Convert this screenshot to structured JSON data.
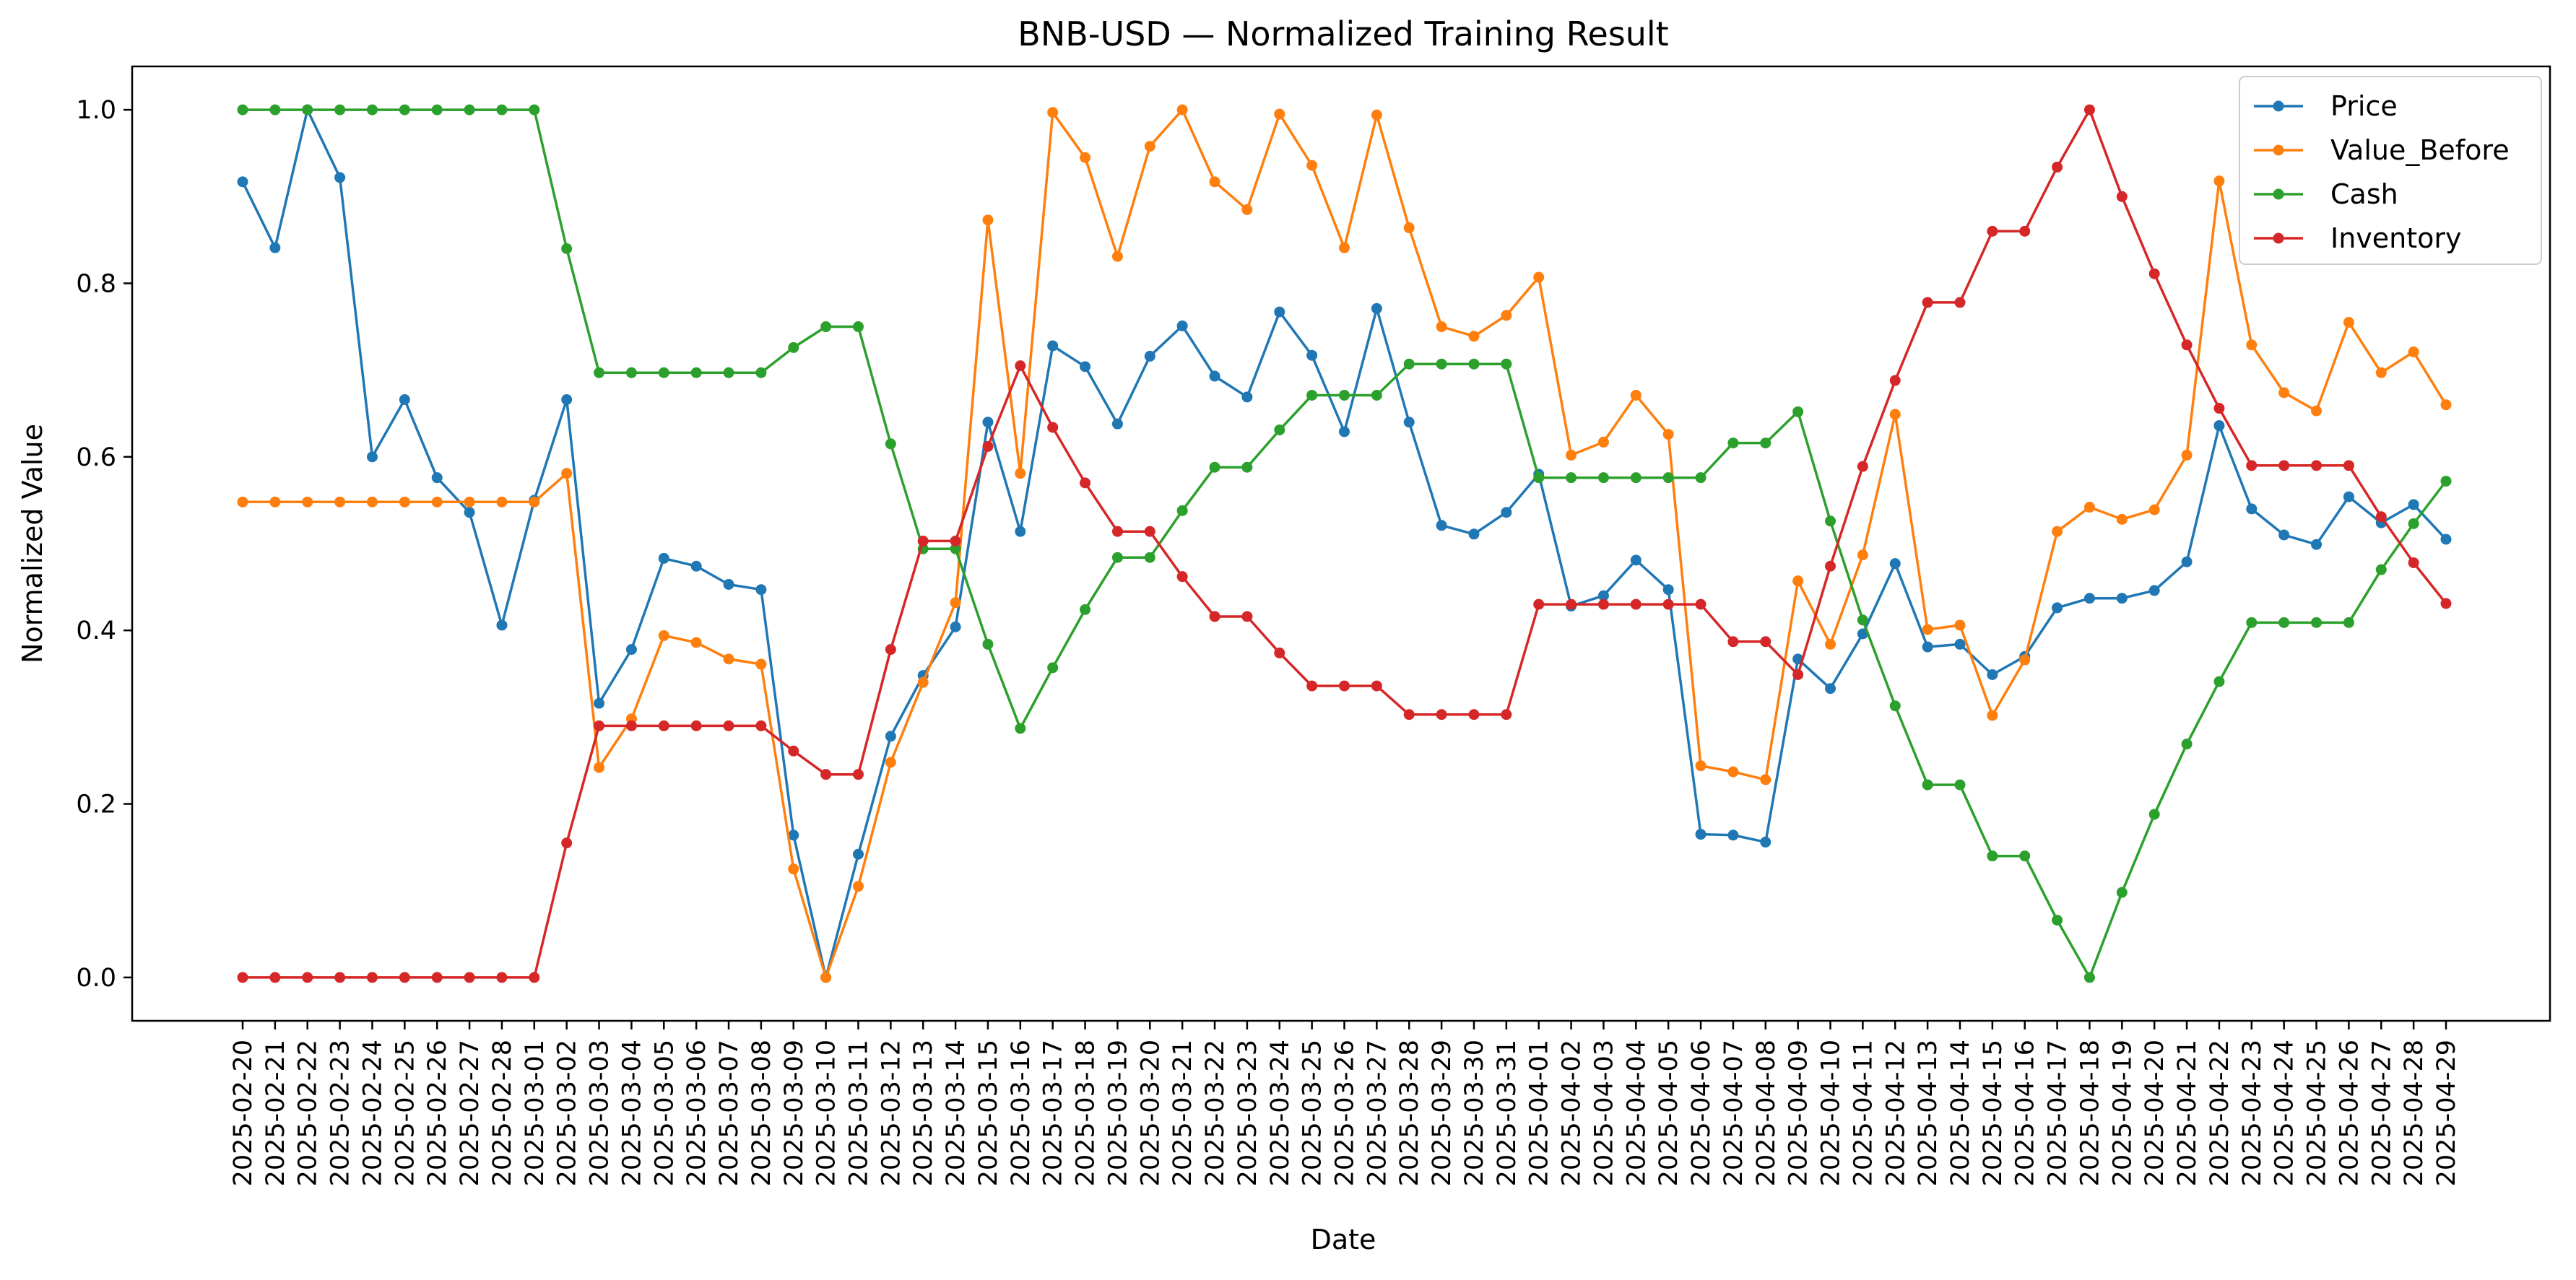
{
  "chart_data": {
    "type": "line",
    "title": "BNB-USD — Normalized Training Result",
    "xlabel": "Date",
    "ylabel": "Normalized Value",
    "ylim": [
      -0.05,
      1.05
    ],
    "yticks": [
      0.0,
      0.2,
      0.4,
      0.6,
      0.8,
      1.0
    ],
    "ytick_labels": [
      "0.0",
      "0.2",
      "0.4",
      "0.6",
      "0.8",
      "1.0"
    ],
    "grid": false,
    "legend": "top-right",
    "x": [
      "2025-02-20",
      "2025-02-21",
      "2025-02-22",
      "2025-02-23",
      "2025-02-24",
      "2025-02-25",
      "2025-02-26",
      "2025-02-27",
      "2025-02-28",
      "2025-03-01",
      "2025-03-02",
      "2025-03-03",
      "2025-03-04",
      "2025-03-05",
      "2025-03-06",
      "2025-03-07",
      "2025-03-08",
      "2025-03-09",
      "2025-03-10",
      "2025-03-11",
      "2025-03-12",
      "2025-03-13",
      "2025-03-14",
      "2025-03-15",
      "2025-03-16",
      "2025-03-17",
      "2025-03-18",
      "2025-03-19",
      "2025-03-20",
      "2025-03-21",
      "2025-03-22",
      "2025-03-23",
      "2025-03-24",
      "2025-03-25",
      "2025-03-26",
      "2025-03-27",
      "2025-03-28",
      "2025-03-29",
      "2025-03-30",
      "2025-03-31",
      "2025-04-01",
      "2025-04-02",
      "2025-04-03",
      "2025-04-04",
      "2025-04-05",
      "2025-04-06",
      "2025-04-07",
      "2025-04-08",
      "2025-04-09",
      "2025-04-10",
      "2025-04-11",
      "2025-04-12",
      "2025-04-13",
      "2025-04-14",
      "2025-04-15",
      "2025-04-16",
      "2025-04-17",
      "2025-04-18",
      "2025-04-19",
      "2025-04-20",
      "2025-04-21",
      "2025-04-22",
      "2025-04-23",
      "2025-04-24",
      "2025-04-25",
      "2025-04-26",
      "2025-04-27",
      "2025-04-28",
      "2025-04-29"
    ],
    "series": [
      {
        "name": "Price",
        "color": "#1f77b4",
        "values": [
          0.917,
          0.841,
          1.0,
          0.922,
          0.6,
          0.666,
          0.576,
          0.536,
          0.406,
          0.55,
          0.666,
          0.316,
          0.378,
          0.483,
          0.474,
          0.453,
          0.447,
          0.164,
          0.0,
          0.142,
          0.278,
          0.348,
          0.404,
          0.64,
          0.514,
          0.728,
          0.704,
          0.638,
          0.716,
          0.751,
          0.693,
          0.669,
          0.767,
          0.717,
          0.629,
          0.771,
          0.64,
          0.521,
          0.511,
          0.536,
          0.58,
          0.428,
          0.44,
          0.481,
          0.447,
          0.165,
          0.164,
          0.156,
          0.367,
          0.333,
          0.396,
          0.477,
          0.381,
          0.384,
          0.349,
          0.37,
          0.426,
          0.437,
          0.437,
          0.446,
          0.479,
          0.636,
          0.54,
          0.51,
          0.499,
          0.554,
          0.524,
          0.545,
          0.505
        ]
      },
      {
        "name": "Value_Before",
        "color": "#ff7f0e",
        "values": [
          0.548,
          0.548,
          0.548,
          0.548,
          0.548,
          0.548,
          0.548,
          0.548,
          0.548,
          0.548,
          0.581,
          0.242,
          0.298,
          0.394,
          0.386,
          0.367,
          0.361,
          0.125,
          0.0,
          0.105,
          0.248,
          0.34,
          0.432,
          0.873,
          0.581,
          0.997,
          0.945,
          0.831,
          0.958,
          1.0,
          0.917,
          0.885,
          0.995,
          0.936,
          0.841,
          0.994,
          0.864,
          0.75,
          0.739,
          0.763,
          0.807,
          0.602,
          0.617,
          0.671,
          0.626,
          0.244,
          0.237,
          0.228,
          0.457,
          0.384,
          0.487,
          0.649,
          0.401,
          0.406,
          0.302,
          0.366,
          0.514,
          0.542,
          0.528,
          0.539,
          0.602,
          0.918,
          0.729,
          0.674,
          0.653,
          0.755,
          0.697,
          0.721,
          0.66
        ]
      },
      {
        "name": "Cash",
        "color": "#2ca02c",
        "values": [
          1.0,
          1.0,
          1.0,
          1.0,
          1.0,
          1.0,
          1.0,
          1.0,
          1.0,
          1.0,
          0.84,
          0.697,
          0.697,
          0.697,
          0.697,
          0.697,
          0.697,
          0.726,
          0.75,
          0.75,
          0.615,
          0.494,
          0.494,
          0.384,
          0.287,
          0.357,
          0.424,
          0.484,
          0.484,
          0.538,
          0.588,
          0.588,
          0.631,
          0.671,
          0.671,
          0.671,
          0.707,
          0.707,
          0.707,
          0.707,
          0.576,
          0.576,
          0.576,
          0.576,
          0.576,
          0.576,
          0.616,
          0.616,
          0.652,
          0.526,
          0.412,
          0.313,
          0.222,
          0.222,
          0.14,
          0.14,
          0.066,
          0.0,
          0.098,
          0.188,
          0.269,
          0.341,
          0.409,
          0.409,
          0.409,
          0.409,
          0.47,
          0.523,
          0.572
        ]
      },
      {
        "name": "Inventory",
        "color": "#d62728",
        "values": [
          0.0,
          0.0,
          0.0,
          0.0,
          0.0,
          0.0,
          0.0,
          0.0,
          0.0,
          0.0,
          0.155,
          0.29,
          0.29,
          0.29,
          0.29,
          0.29,
          0.29,
          0.261,
          0.234,
          0.234,
          0.378,
          0.503,
          0.503,
          0.612,
          0.705,
          0.634,
          0.57,
          0.514,
          0.514,
          0.462,
          0.416,
          0.416,
          0.374,
          0.336,
          0.336,
          0.336,
          0.303,
          0.303,
          0.303,
          0.303,
          0.43,
          0.43,
          0.43,
          0.43,
          0.43,
          0.43,
          0.387,
          0.387,
          0.349,
          0.474,
          0.589,
          0.688,
          0.778,
          0.778,
          0.86,
          0.86,
          0.934,
          1.0,
          0.9,
          0.811,
          0.729,
          0.656,
          0.59,
          0.59,
          0.59,
          0.59,
          0.531,
          0.478,
          0.431
        ]
      }
    ]
  }
}
